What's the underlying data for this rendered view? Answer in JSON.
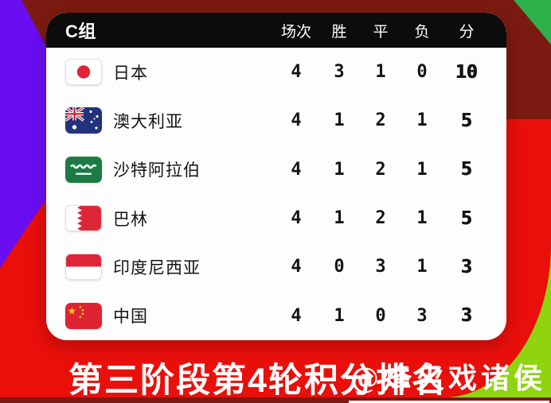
{
  "colors": {
    "maroon": "#7b1a10",
    "purple": "#6a0ef2",
    "red": "#e90f0b",
    "green_top": "#2eb04a",
    "green_bottom": "#90d40f",
    "header_bg": "#0c0c0c",
    "card_bg": "#fdfdfd",
    "flag_red": "#dc2638",
    "flag_navy": "#22337c",
    "flag_green": "#1e7a44",
    "star_yellow": "#fec31e"
  },
  "chart_data": {
    "type": "table",
    "title": "第三阶段第4轮积分排名",
    "group_label": "C组",
    "columns": [
      "场次",
      "胜",
      "平",
      "负",
      "分"
    ],
    "rows": [
      {
        "team": "日本",
        "flag": "japan",
        "values": [
          4,
          3,
          1,
          0,
          10
        ]
      },
      {
        "team": "澳大利亚",
        "flag": "australia",
        "values": [
          4,
          1,
          2,
          1,
          5
        ]
      },
      {
        "team": "沙特阿拉伯",
        "flag": "saudi-arabia",
        "values": [
          4,
          1,
          2,
          1,
          5
        ]
      },
      {
        "team": "巴林",
        "flag": "bahrain",
        "values": [
          4,
          1,
          2,
          1,
          5
        ]
      },
      {
        "team": "印度尼西亚",
        "flag": "indonesia",
        "values": [
          4,
          0,
          3,
          1,
          3
        ]
      },
      {
        "team": "中国",
        "flag": "china",
        "values": [
          4,
          1,
          0,
          3,
          3
        ]
      }
    ]
  },
  "footer": {
    "title": "第三阶段第4轮积分排名",
    "watermark": "@烽火戏诸侯"
  }
}
